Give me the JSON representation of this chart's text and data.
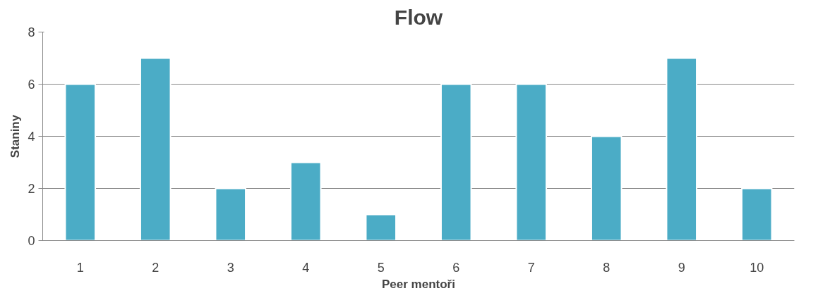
{
  "chart_data": {
    "type": "bar",
    "title": "Flow",
    "xlabel": "Peer mentoři",
    "ylabel": "Staniny",
    "categories": [
      "1",
      "2",
      "3",
      "4",
      "5",
      "6",
      "7",
      "8",
      "9",
      "10"
    ],
    "values": [
      6,
      7,
      2,
      3,
      1,
      6,
      6,
      4,
      7,
      2
    ],
    "color": "#4bacc6",
    "ylim": [
      0,
      8
    ],
    "yticks": [
      0,
      2,
      4,
      6,
      8
    ],
    "grid": "y"
  }
}
